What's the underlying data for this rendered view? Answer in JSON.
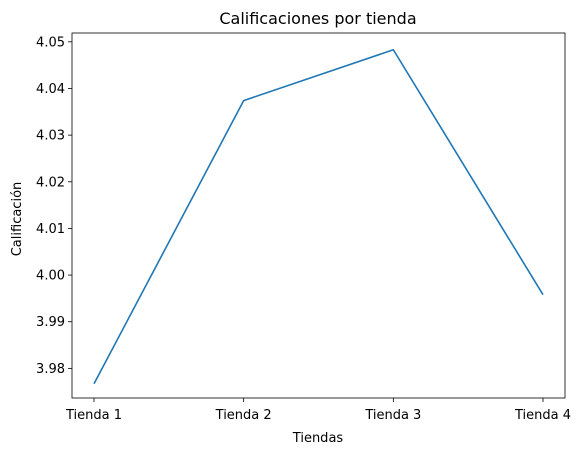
{
  "chart_data": {
    "type": "line",
    "title": "Calificaciones por tienda",
    "xlabel": "Tiendas",
    "ylabel": "Calificación",
    "categories": [
      "Tienda 1",
      "Tienda 2",
      "Tienda 3",
      "Tienda 4"
    ],
    "series": [
      {
        "values": [
          3.9767,
          4.0374,
          4.0483,
          3.9958
        ],
        "color": "#1f77b4"
      }
    ],
    "yticks": [
      {
        "value": 3.98,
        "label": "3.98"
      },
      {
        "value": 3.99,
        "label": "3.99"
      },
      {
        "value": 4.0,
        "label": "4.00"
      },
      {
        "value": 4.01,
        "label": "4.01"
      },
      {
        "value": 4.02,
        "label": "4.02"
      },
      {
        "value": 4.03,
        "label": "4.03"
      },
      {
        "value": 4.04,
        "label": "4.04"
      },
      {
        "value": 4.05,
        "label": "4.05"
      }
    ],
    "ylim": [
      3.97365,
      4.05189
    ],
    "grid": false,
    "legend": "none"
  }
}
